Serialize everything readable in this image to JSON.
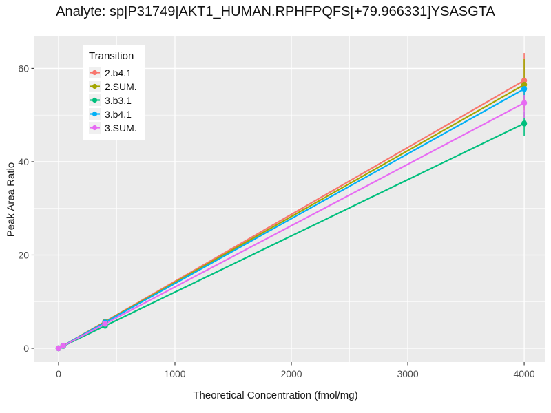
{
  "title": "Analyte: sp|P31749|AKT1_HUMAN.RPHFPQFS[+79.966331]YSASGTA",
  "chart_data": {
    "type": "line",
    "title": "Analyte: sp|P31749|AKT1_HUMAN.RPHFPQFS[+79.966331]YSASGTA",
    "xlabel": "Theoretical Concentration (fmol/mg)",
    "ylabel": "Peak Area Ratio",
    "xlim": [
      -207,
      4183
    ],
    "ylim": [
      -2.95,
      66.85
    ],
    "x_major_ticks": [
      0,
      1000,
      2000,
      3000,
      4000
    ],
    "x_minor_ticks": [
      500,
      1500,
      2500,
      3500
    ],
    "y_major_ticks": [
      0,
      20,
      40,
      60
    ],
    "y_minor_ticks": [
      10,
      30,
      50
    ],
    "grid": true,
    "panel_bg": "#EBEBEB",
    "grid_color": "#FFFFFF",
    "tick_color": "#333333",
    "tick_label_color": "#4D4D4D",
    "legend": {
      "title": "Transition",
      "position": "top-left-inside",
      "bg": "#FFFFFF",
      "key_bg": "#F0F0F0"
    },
    "x_points": [
      0,
      40,
      400,
      4000
    ],
    "series": [
      {
        "name": "2.b4.1",
        "color": "#F8766D",
        "y": [
          0,
          0.57,
          5.74,
          57.4
        ],
        "error_4000": {
          "low": 51.5,
          "high": 63.3
        }
      },
      {
        "name": "2.SUM.",
        "color": "#A3A500",
        "y": [
          0,
          0.57,
          5.65,
          56.5
        ],
        "error_4000": {
          "low": 51.0,
          "high": 62.0
        }
      },
      {
        "name": "3.b3.1",
        "color": "#00BF7D",
        "y": [
          0,
          0.48,
          4.82,
          48.2
        ],
        "error_4000": {
          "low": 45.5,
          "high": 50.8
        }
      },
      {
        "name": "3.b4.1",
        "color": "#00B0F6",
        "y": [
          0,
          0.56,
          5.56,
          55.6
        ],
        "error_4000": {
          "low": 53.5,
          "high": 57.6
        }
      },
      {
        "name": "3.SUM.",
        "color": "#E76BF3",
        "y": [
          0,
          0.53,
          5.26,
          52.6
        ],
        "error_4000": {
          "low": 49.4,
          "high": 54.3
        }
      }
    ]
  }
}
